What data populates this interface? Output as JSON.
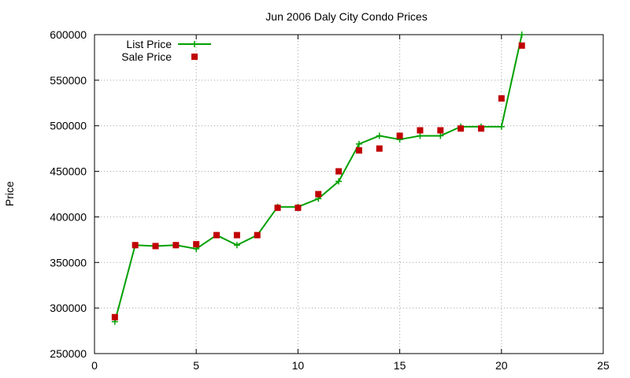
{
  "chart_data": {
    "type": "line",
    "title": "Jun 2006 Daly City Condo Prices",
    "xlabel": "",
    "ylabel": "Price",
    "xlim": [
      0,
      25
    ],
    "ylim": [
      250000,
      600000
    ],
    "grid": true,
    "legend_position": "top-left",
    "x_ticks": [
      0,
      5,
      10,
      15,
      20,
      25
    ],
    "y_ticks": [
      250000,
      300000,
      350000,
      400000,
      450000,
      500000,
      550000,
      600000
    ],
    "x_tick_labels": [
      "0",
      "5",
      "10",
      "15",
      "20",
      "25"
    ],
    "y_tick_labels": [
      "250000",
      "300000",
      "350000",
      "400000",
      "450000",
      "500000",
      "550000",
      "600000"
    ],
    "series": [
      {
        "name": "List Price",
        "style": "linespoints",
        "marker": "plus",
        "color": "#00a000",
        "x": [
          1,
          2,
          3,
          4,
          5,
          6,
          7,
          8,
          9,
          10,
          11,
          12,
          13,
          14,
          15,
          16,
          17,
          18,
          19,
          20,
          21
        ],
        "values": [
          285000,
          369000,
          368000,
          369000,
          365000,
          380000,
          369000,
          380000,
          411000,
          411000,
          420000,
          439000,
          480000,
          489000,
          485000,
          489000,
          489000,
          499000,
          499000,
          499000,
          600000
        ]
      },
      {
        "name": "Sale Price",
        "style": "points",
        "marker": "square",
        "color": "#c00000",
        "x": [
          1,
          2,
          3,
          4,
          5,
          6,
          7,
          8,
          9,
          10,
          11,
          12,
          13,
          14,
          15,
          16,
          17,
          18,
          19,
          20,
          21
        ],
        "values": [
          290000,
          369000,
          368000,
          369000,
          370000,
          380000,
          380000,
          380000,
          410000,
          410000,
          425000,
          450000,
          473000,
          475000,
          489000,
          495000,
          495000,
          497000,
          497000,
          530000,
          588000
        ]
      }
    ]
  }
}
